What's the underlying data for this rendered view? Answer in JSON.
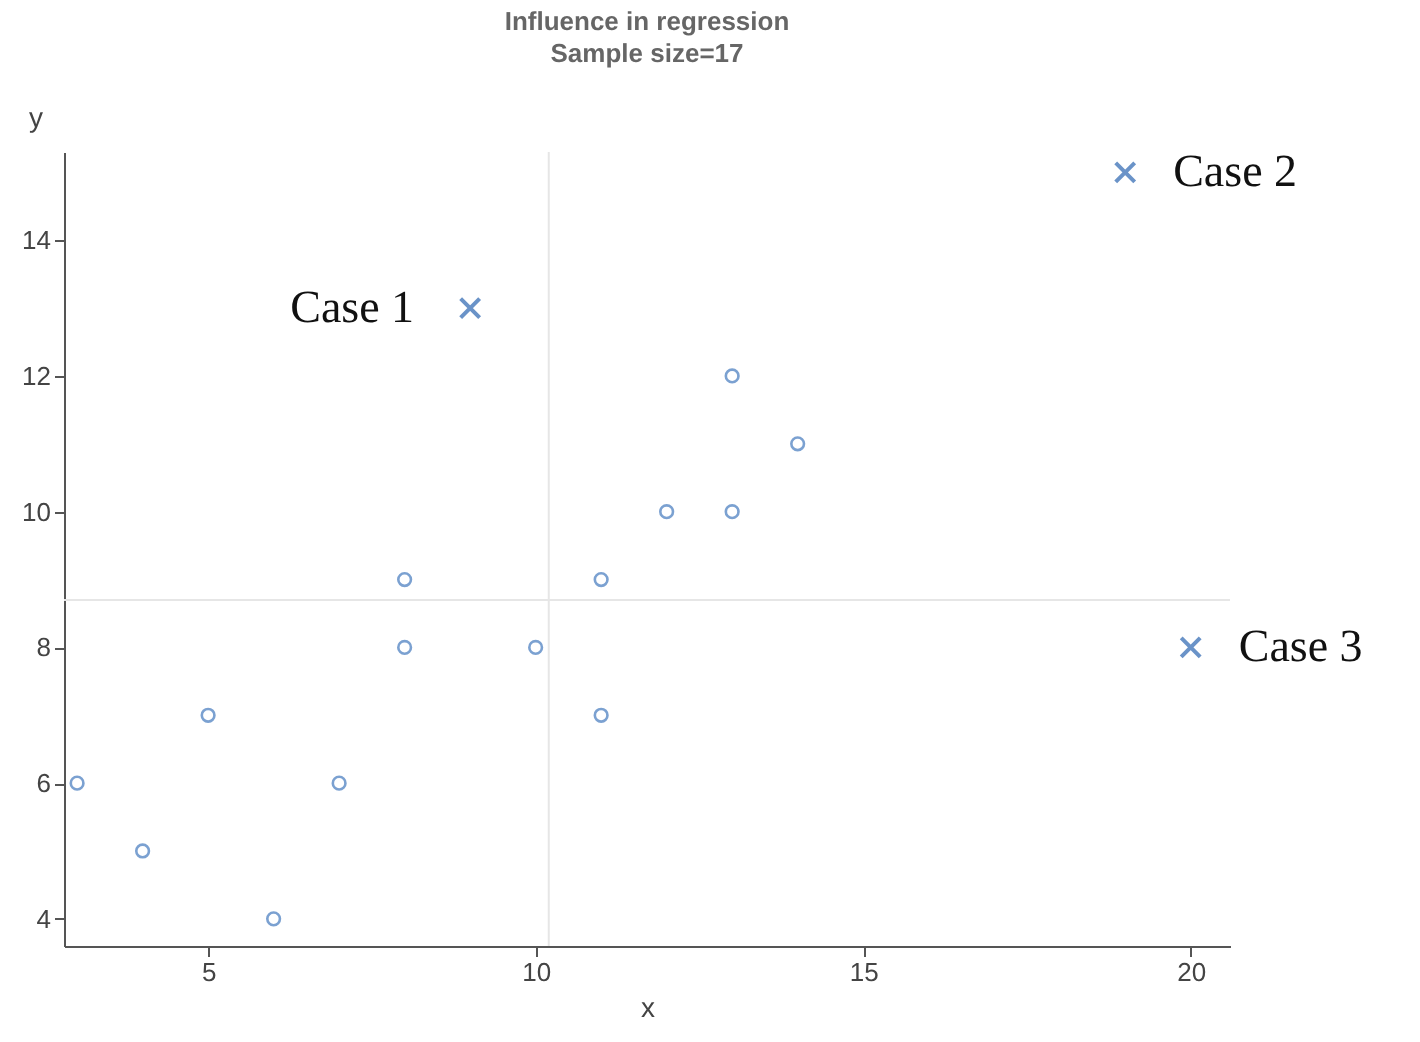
{
  "chart_data": {
    "type": "scatter",
    "title": "Influence in regression",
    "subtitle": "Sample size=17",
    "xlabel": "x",
    "ylabel": "y",
    "xlim": [
      2.8,
      20.6
    ],
    "ylim": [
      3.6,
      15.3
    ],
    "xticks": [
      5,
      10,
      15,
      20
    ],
    "yticks": [
      4,
      6,
      8,
      10,
      12,
      14
    ],
    "grid": false,
    "legend": false,
    "series": [
      {
        "color": "#7ba1d1",
        "marker": "circle",
        "x": [
          3,
          4,
          5,
          6,
          7,
          8,
          8,
          10,
          11,
          11,
          12,
          13,
          13,
          14
        ],
        "values": [
          6,
          5,
          7,
          4,
          6,
          9,
          8,
          8,
          9,
          7,
          10,
          12,
          10,
          11
        ]
      },
      {
        "color": "#6a93c8",
        "marker": "cross",
        "x": [
          9,
          19,
          20
        ],
        "values": [
          13,
          15,
          8
        ]
      }
    ],
    "ref_lines": [
      {
        "axis": "x",
        "value": 10.2,
        "color": "#e6e6e6"
      },
      {
        "axis": "y",
        "value": 8.7,
        "color": "#e6e6e6"
      }
    ],
    "annotations": [
      {
        "text": "Case 1",
        "x": 9,
        "y": 13
      },
      {
        "text": "Case 2",
        "x": 19,
        "y": 15
      },
      {
        "text": "Case 3",
        "x": 20,
        "y": 8
      }
    ]
  }
}
